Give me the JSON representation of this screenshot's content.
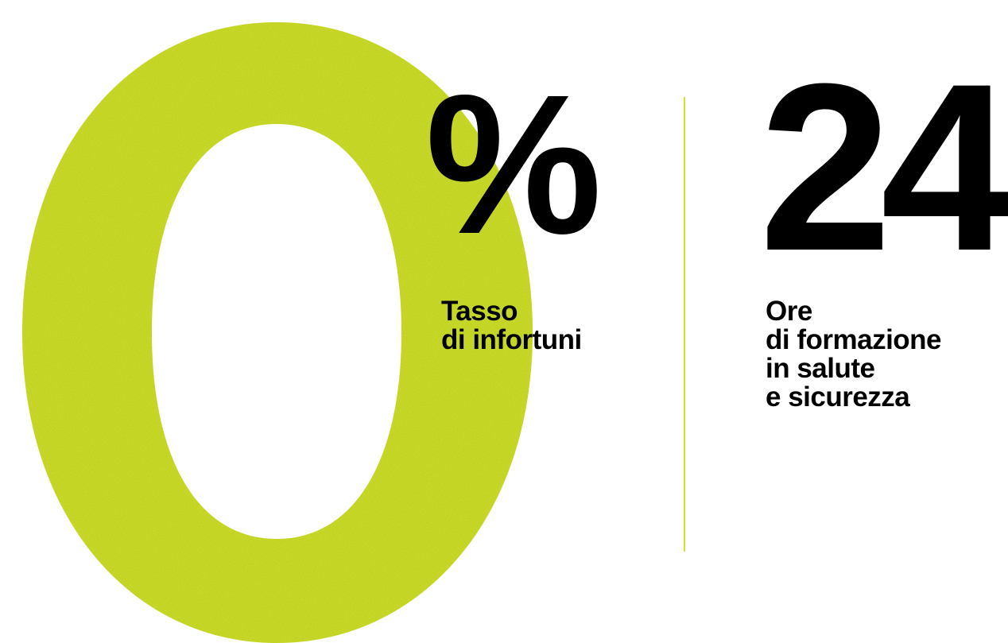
{
  "theme": {
    "accent": "#cfe12a",
    "text": "#000000",
    "background": "#ffffff"
  },
  "stats": [
    {
      "value": "0",
      "unit": "%",
      "label_lines": [
        "Tasso",
        "di infortuni"
      ]
    },
    {
      "value": "24",
      "label_lines": [
        "Ore",
        "di formazione",
        "in salute",
        "e sicurezza"
      ]
    }
  ]
}
